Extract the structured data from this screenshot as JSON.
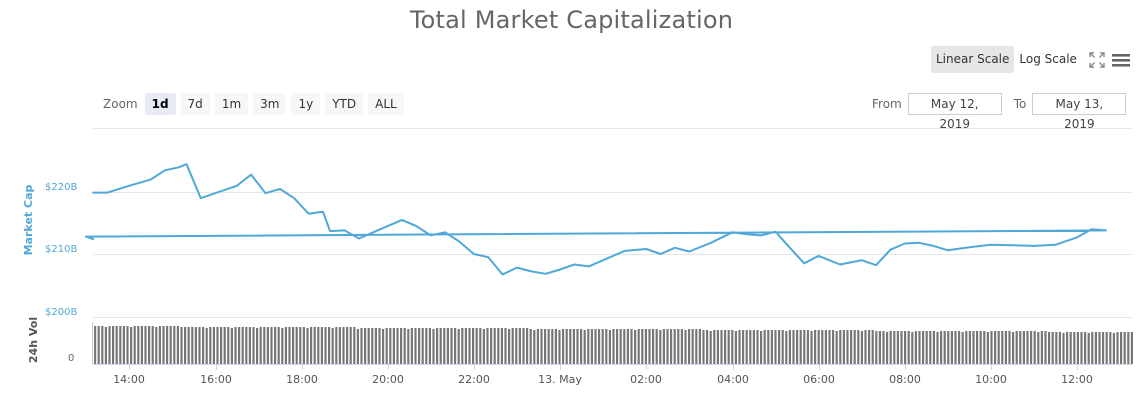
{
  "title": "Total Market Capitalization",
  "toolbar": {
    "scale_buttons": [
      {
        "label": "Linear Scale",
        "active": true
      },
      {
        "label": "Log Scale",
        "active": false
      }
    ],
    "fullscreen_icon": "fullscreen-icon",
    "menu_icon": "hamburger-menu-icon"
  },
  "range_selector": {
    "zoom_label": "Zoom",
    "buttons": [
      {
        "label": "1d",
        "active": true
      },
      {
        "label": "7d",
        "active": false
      },
      {
        "label": "1m",
        "active": false
      },
      {
        "label": "3m",
        "active": false
      },
      {
        "label": "1y",
        "active": false
      },
      {
        "label": "YTD",
        "active": false
      },
      {
        "label": "ALL",
        "active": false
      }
    ],
    "from_label": "From",
    "from_value": "May 12, 2019",
    "to_label": "To",
    "to_value": "May 13, 2019"
  },
  "colors": {
    "line": "#4fa8d8",
    "volume_bar": "#777777",
    "grid": "#e6e6e6",
    "title": "#666666"
  },
  "chart_data": {
    "type": "line",
    "title": "Total Market Capitalization",
    "xlabel": "",
    "ylabel": "Market Cap",
    "ylabel_secondary": "24h Vol",
    "x_ticks": [
      "14:00",
      "16:00",
      "18:00",
      "20:00",
      "22:00",
      "13. May",
      "02:00",
      "04:00",
      "06:00",
      "08:00",
      "10:00",
      "12:00"
    ],
    "y_ticks": [
      "$200B",
      "$210B",
      "$220B"
    ],
    "volume_y_ticks": [
      "0"
    ],
    "ylim": [
      200,
      230
    ],
    "grid": true,
    "legend": null,
    "series": [
      {
        "name": "Market Cap ($B)",
        "x": [
          "13:10",
          "13:30",
          "14:00",
          "14:30",
          "14:50",
          "15:10",
          "15:20",
          "15:40",
          "16:00",
          "16:30",
          "16:50",
          "17:10",
          "17:30",
          "17:50",
          "18:10",
          "18:30",
          "18:40",
          "19:00",
          "19:20",
          "19:40",
          "20:00",
          "20:20",
          "20:40",
          "21:00",
          "21:20",
          "21:40",
          "22:00",
          "22:20",
          "22:40",
          "23:00",
          "23:20",
          "23:40",
          "00:00",
          "00:20",
          "00:40",
          "01:00",
          "01:30",
          "02:00",
          "02:20",
          "02:40",
          "03:00",
          "03:30",
          "04:00",
          "04:20",
          "04:40",
          "05:00",
          "05:20",
          "05:40",
          "06:00",
          "06:30",
          "07:00",
          "07:20",
          "07:40",
          "08:00",
          "08:20",
          "08:40",
          "09:00",
          "09:30",
          "10:00",
          "10:30",
          "11:00",
          "11:30",
          "12:00",
          "12:20",
          "12:40",
          "13:00",
          "13:10"
        ],
        "values": [
          219.9,
          219.9,
          221.0,
          222.0,
          223.5,
          224.0,
          224.5,
          219.0,
          219.8,
          221.0,
          222.8,
          219.8,
          220.5,
          219.0,
          216.5,
          216.8,
          213.7,
          213.8,
          212.5,
          213.5,
          214.5,
          215.5,
          214.5,
          213.0,
          213.5,
          212.0,
          210.0,
          209.5,
          206.7,
          207.8,
          207.2,
          206.8,
          207.5,
          208.3,
          208.0,
          209.0,
          210.5,
          210.8,
          210.0,
          211.0,
          210.4,
          211.8,
          213.5,
          213.2,
          213.0,
          213.6,
          211.0,
          208.5,
          209.7,
          208.3,
          209.0,
          208.2,
          210.7,
          211.7,
          211.8,
          211.3,
          210.6,
          211.1,
          211.5,
          211.4,
          211.3,
          211.5,
          212.7,
          214.0,
          213.8,
          212.8,
          212.4
        ]
      },
      {
        "name": "24h Vol",
        "description": "Near-constant volume bars spanning the full period, slightly declining toward the end",
        "relative_heights": "approximately 0.95 of volume panel height throughout"
      }
    ]
  }
}
